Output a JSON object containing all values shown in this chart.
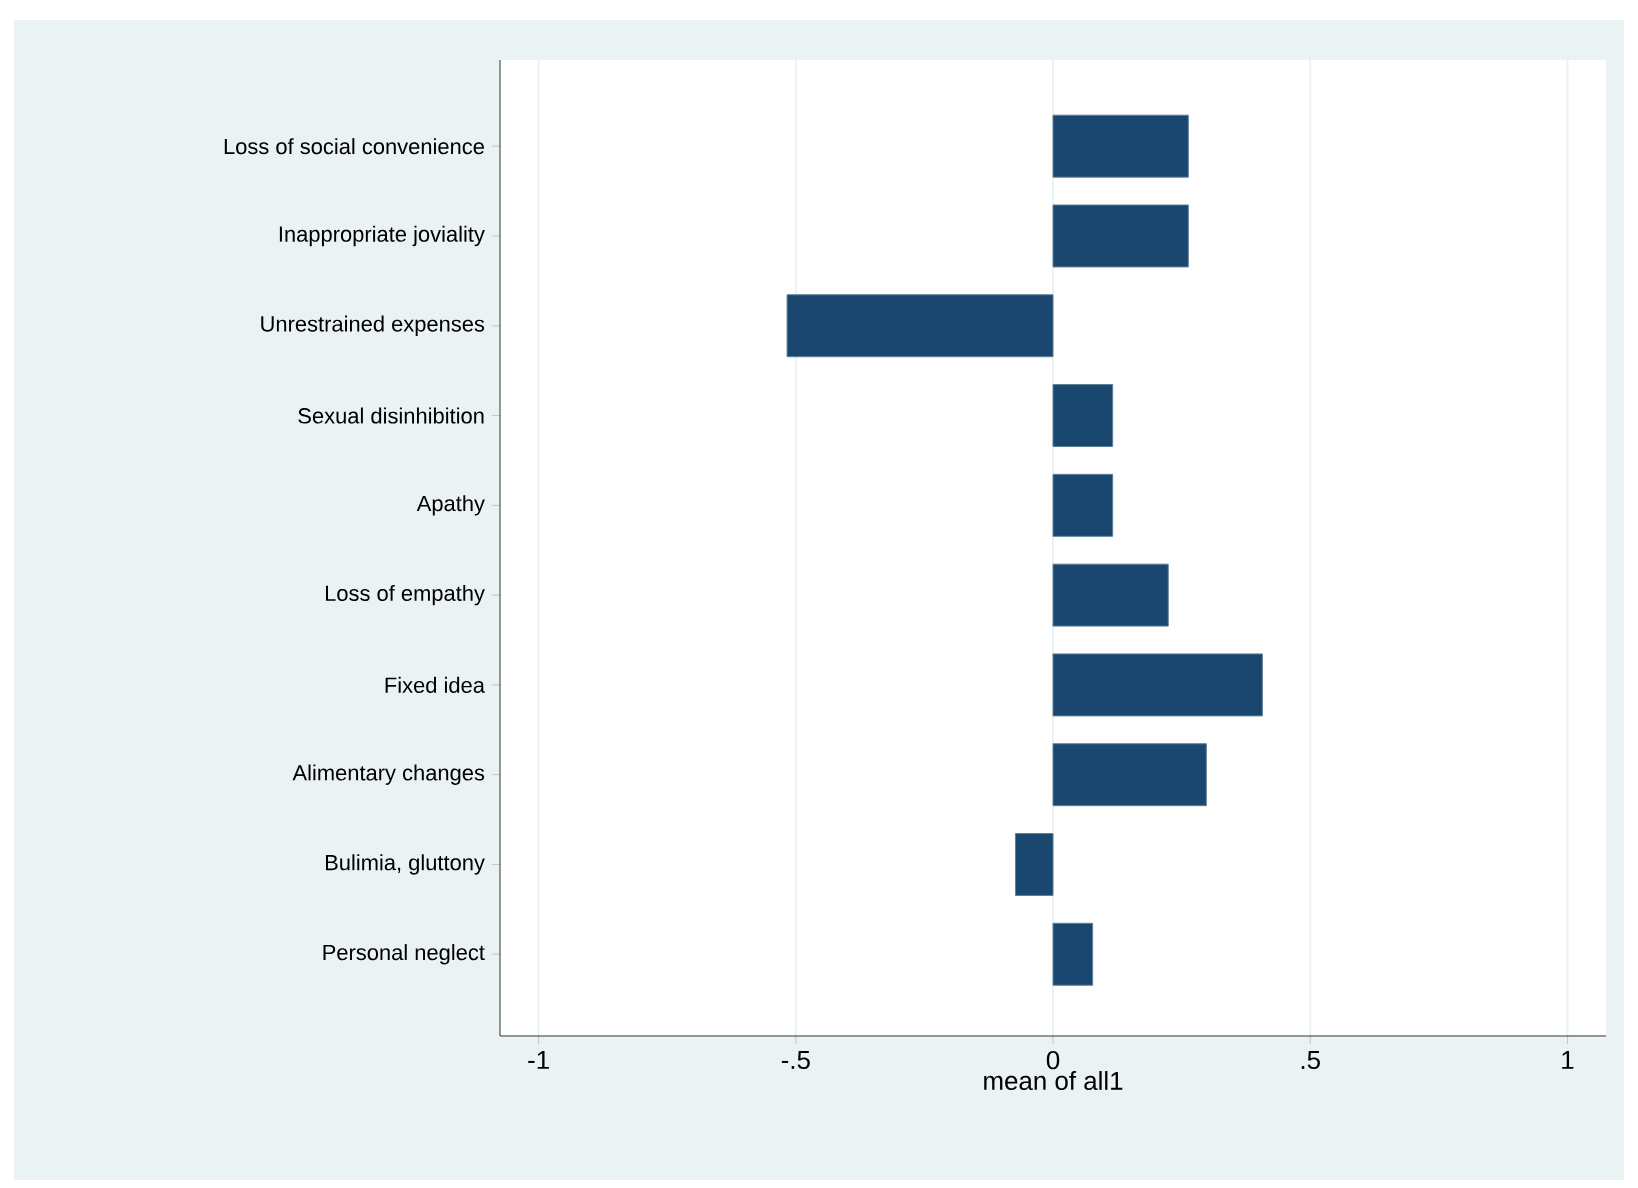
{
  "chart_data": {
    "type": "bar",
    "orientation": "horizontal",
    "categories": [
      "Loss of social convenience",
      "Inappropriate joviality",
      "Unrestrained expenses",
      "Sexual disinhibition",
      "Apathy",
      "Loss of empathy",
      "Fixed idea",
      "Alimentary changes",
      "Bulimia, gluttony",
      "Personal neglect"
    ],
    "values": [
      0.263,
      0.263,
      -0.517,
      0.116,
      0.116,
      0.224,
      0.407,
      0.298,
      -0.073,
      0.077
    ],
    "color": "#1a476f",
    "xlabel": "mean of all1",
    "xlim": [
      -1.075,
      1.075
    ],
    "xticks": [
      {
        "value": -1,
        "label": "-1"
      },
      {
        "value": -0.5,
        "label": "-.5"
      },
      {
        "value": 0,
        "label": "0"
      },
      {
        "value": 0.5,
        "label": ".5"
      },
      {
        "value": 1,
        "label": "1"
      }
    ],
    "grid": "x"
  }
}
